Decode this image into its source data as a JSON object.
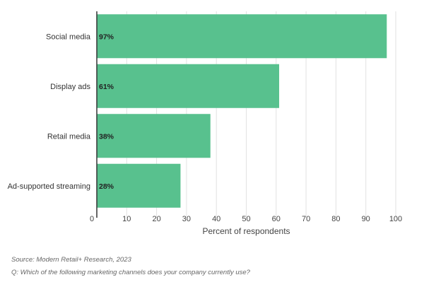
{
  "chart_data": {
    "type": "bar",
    "orientation": "horizontal",
    "categories": [
      "Social media",
      "Display ads",
      "Retail media",
      "Ad-supported streaming"
    ],
    "values": [
      97,
      61,
      38,
      28
    ],
    "data_labels": [
      "97%",
      "61%",
      "38%",
      "28%"
    ],
    "xlabel": "Percent of respondents",
    "ylabel": "",
    "xlim": [
      0,
      100
    ],
    "x_ticks": [
      0,
      10,
      20,
      30,
      40,
      50,
      60,
      70,
      80,
      90,
      100
    ],
    "x_tick_labels": [
      "0",
      "10",
      "20",
      "30",
      "40",
      "50",
      "60",
      "70",
      "80",
      "90",
      "100"
    ],
    "grid": true,
    "bar_color": "#58c18e",
    "gridline_color": "#e2e2e2",
    "axis_color": "#333333"
  },
  "footer": {
    "source": "Source: Modern Retail+ Research, 2023",
    "question": "Q: Which of the following marketing channels does your company currently use?"
  }
}
